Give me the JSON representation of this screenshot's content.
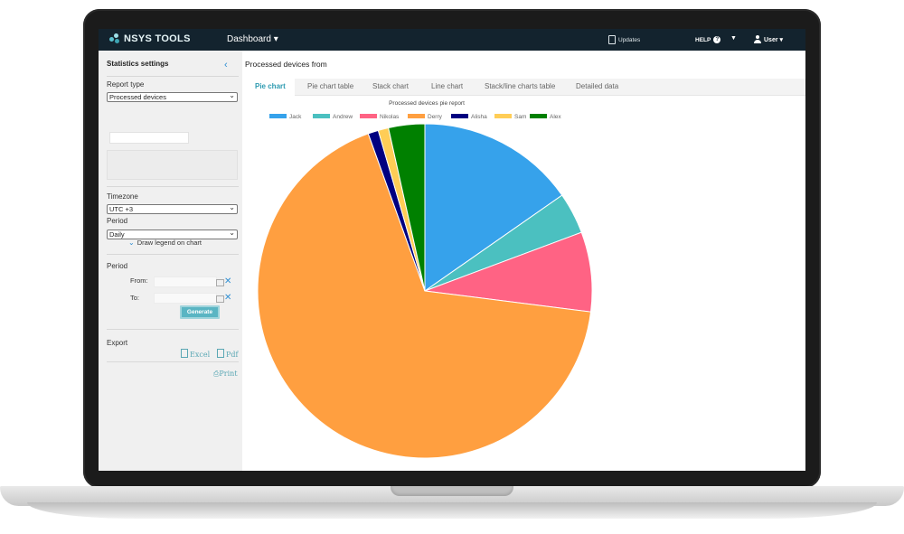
{
  "app": {
    "brand": "NSYS TOOLS",
    "nav_dashboard": "Dashboard ▾",
    "updates": "Updates",
    "help": "HELP",
    "help_icon_glyph": "?",
    "nav_caret": "▼",
    "user": "User ▾"
  },
  "sidebar": {
    "title": "Statistics settings",
    "collapse_glyph": "‹",
    "report_type_label": "Report type",
    "report_type_value": "Processed devices",
    "timezone_label": "Timezone",
    "timezone_value": "UTC +3",
    "period_label": "Period",
    "period_value": "Daily",
    "draw_legend_label": "Draw legend on chart",
    "period_section_label": "Period",
    "from_label": "From:",
    "to_label": "To:",
    "generate_label": "Generate",
    "export_label": "Export",
    "excel_label": "Excel",
    "pdf_label": "Pdf",
    "print_label": "Print"
  },
  "main": {
    "title": "Processed devices from",
    "tabs": [
      {
        "label": "Pie chart",
        "active": true
      },
      {
        "label": "Pie chart table",
        "active": false
      },
      {
        "label": "Stack chart",
        "active": false
      },
      {
        "label": "Line chart",
        "active": false
      },
      {
        "label": "Stack/line charts table",
        "active": false
      },
      {
        "label": "Detailed data",
        "active": false
      }
    ]
  },
  "colors": {
    "nav_bg": "#13232e",
    "accent": "#2e9bb1",
    "generate_bg": "#5ab5c3"
  },
  "chart_data": {
    "type": "pie",
    "title": "Processed devices pie report",
    "legend_position": "top",
    "slices": [
      {
        "label": "Jack",
        "value": 15.3,
        "color": "#36a2eb"
      },
      {
        "label": "Andrew",
        "value": 4.0,
        "color": "#4bc0c0"
      },
      {
        "label": "Nikolas",
        "value": 7.7,
        "color": "#ff6384"
      },
      {
        "label": "Derry",
        "value": 67.5,
        "color": "#ff9f40"
      },
      {
        "label": "Alisha",
        "value": 1.0,
        "color": "#000080"
      },
      {
        "label": "Sam",
        "value": 1.0,
        "color": "#ffcd56"
      },
      {
        "label": "Alex",
        "value": 3.5,
        "color": "#008000"
      }
    ]
  }
}
